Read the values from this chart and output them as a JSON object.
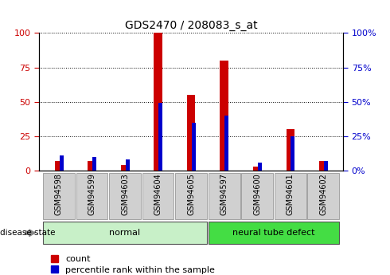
{
  "title": "GDS2470 / 208083_s_at",
  "samples": [
    "GSM94598",
    "GSM94599",
    "GSM94603",
    "GSM94604",
    "GSM94605",
    "GSM94597",
    "GSM94600",
    "GSM94601",
    "GSM94602"
  ],
  "count_values": [
    7,
    7,
    4,
    100,
    55,
    80,
    3,
    30,
    7
  ],
  "percentile_values": [
    11,
    10,
    8,
    49,
    35,
    40,
    6,
    25,
    7
  ],
  "groups": [
    {
      "label": "normal",
      "start": 0,
      "end": 5,
      "color": "#c8f0c8"
    },
    {
      "label": "neural tube defect",
      "start": 5,
      "end": 9,
      "color": "#44dd44"
    }
  ],
  "disease_state_label": "disease state",
  "legend_count_label": "count",
  "legend_pct_label": "percentile rank within the sample",
  "bar_color_count": "#cc0000",
  "bar_color_pct": "#0000cc",
  "ylim": [
    0,
    100
  ],
  "yticks": [
    0,
    25,
    50,
    75,
    100
  ],
  "bg_color": "#ffffff",
  "tick_bg": "#d0d0d0"
}
